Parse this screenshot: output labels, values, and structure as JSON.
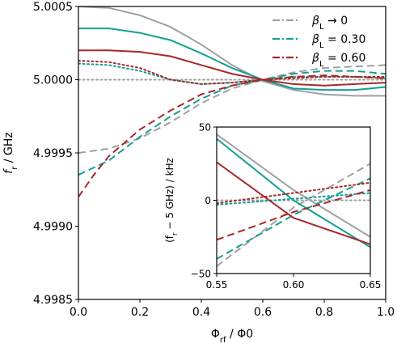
{
  "chart_data": [
    {
      "type": "line",
      "role": "main",
      "xlabel_parts": [
        "Φ",
        "rf",
        " / Φ",
        "0"
      ],
      "ylabel_parts": [
        "f",
        "r",
        " / GHz"
      ],
      "xlim": [
        0.0,
        1.0
      ],
      "ylim": [
        4.9985,
        5.0005
      ],
      "xticks": [
        0.0,
        0.2,
        0.4,
        0.6,
        0.8,
        1.0
      ],
      "xtick_labels": [
        "0.0",
        "0.2",
        "0.4",
        "0.6",
        "0.8",
        "1.0"
      ],
      "yticks": [
        4.9985,
        4.999,
        4.9995,
        5.0,
        5.0005
      ],
      "ytick_labels": [
        "4.9985",
        "4.9990",
        "4.9995",
        "5.0000",
        "5.0005"
      ],
      "legend_position": "top-right",
      "grid": false,
      "series": [
        {
          "name": "β_L → 0",
          "color": "#a0a0a0",
          "style": "solid",
          "x": [
            0.0,
            0.1,
            0.2,
            0.3,
            0.4,
            0.5,
            0.6,
            0.7,
            0.8,
            0.9,
            1.0
          ],
          "y": [
            5.0005,
            5.00049,
            5.00044,
            5.00036,
            5.00024,
            5.0001,
            4.99999,
            4.99993,
            4.9999,
            4.99989,
            4.99989
          ]
        },
        {
          "name": "β_L → 0",
          "color": "#a0a0a0",
          "style": "dashed",
          "x": [
            0.0,
            0.1,
            0.2,
            0.3,
            0.4,
            0.5,
            0.6,
            0.7,
            0.8,
            0.9,
            1.0
          ],
          "y": [
            4.9995,
            4.99953,
            4.9996,
            4.99971,
            4.99984,
            4.99994,
            5.0,
            5.00005,
            5.00008,
            5.00009,
            5.0001
          ]
        },
        {
          "name": "β_L → 0",
          "color": "#a0a0a0",
          "style": "dotted",
          "x": [
            0.0,
            0.25,
            0.5,
            0.75,
            1.0
          ],
          "y": [
            5.0,
            5.0,
            5.0,
            5.0,
            5.0
          ]
        },
        {
          "name": "β_L = 0.30",
          "color": "#12a092",
          "style": "solid",
          "x": [
            0.0,
            0.1,
            0.2,
            0.3,
            0.4,
            0.5,
            0.6,
            0.7,
            0.8,
            0.9,
            1.0
          ],
          "y": [
            5.00035,
            5.00035,
            5.00032,
            5.00027,
            5.00018,
            5.00008,
            5.0,
            4.99994,
            4.99993,
            4.99993,
            4.99995
          ]
        },
        {
          "name": "β_L = 0.30",
          "color": "#12a092",
          "style": "dashed",
          "x": [
            0.0,
            0.1,
            0.2,
            0.3,
            0.4,
            0.5,
            0.6,
            0.7,
            0.8,
            0.9,
            1.0
          ],
          "y": [
            4.99935,
            4.99945,
            4.99961,
            4.99975,
            4.99987,
            4.99996,
            5.0,
            5.00004,
            5.00006,
            5.00006,
            5.00004
          ]
        },
        {
          "name": "β_L = 0.30",
          "color": "#12a092",
          "style": "dotted",
          "x": [
            0.0,
            0.1,
            0.2,
            0.3,
            0.4,
            0.5,
            0.6,
            0.7,
            0.8,
            0.9,
            1.0
          ],
          "y": [
            5.00011,
            5.0001,
            5.00006,
            5.0,
            4.99997,
            4.99998,
            5.0,
            5.00002,
            5.00002,
            5.00002,
            5.00001
          ]
        },
        {
          "name": "β_L = 0.60",
          "color": "#a82828",
          "style": "solid",
          "x": [
            0.0,
            0.1,
            0.2,
            0.3,
            0.4,
            0.5,
            0.6,
            0.7,
            0.8,
            0.9,
            1.0
          ],
          "y": [
            5.0002,
            5.0002,
            5.00019,
            5.00016,
            5.0001,
            5.00004,
            5.0,
            4.99997,
            4.99996,
            4.99997,
            4.99998
          ]
        },
        {
          "name": "β_L = 0.60",
          "color": "#a82828",
          "style": "dashed",
          "x": [
            0.0,
            0.05,
            0.1,
            0.2,
            0.3,
            0.4,
            0.5,
            0.6,
            0.7,
            0.8,
            0.9,
            1.0
          ],
          "y": [
            4.9992,
            4.99935,
            4.99948,
            4.99966,
            4.99979,
            4.9999,
            4.99996,
            5.0,
            5.00002,
            5.00003,
            5.00002,
            5.00001
          ]
        },
        {
          "name": "β_L = 0.60",
          "color": "#a82828",
          "style": "dotted",
          "x": [
            0.0,
            0.1,
            0.2,
            0.3,
            0.4,
            0.5,
            0.6,
            0.7,
            0.8,
            0.9,
            1.0
          ],
          "y": [
            5.00013,
            5.00012,
            5.00008,
            5.0,
            4.99997,
            4.99998,
            5.0,
            5.00001,
            5.00002,
            5.00002,
            5.00002
          ]
        }
      ]
    },
    {
      "type": "line",
      "role": "inset",
      "ylabel_parts": [
        "(f",
        "r",
        " − 5 GHz) / kHz"
      ],
      "xlim": [
        0.55,
        0.65
      ],
      "ylim": [
        -50,
        50
      ],
      "xticks": [
        0.55,
        0.6,
        0.65
      ],
      "xtick_labels": [
        "0.55",
        "0.60",
        "0.65"
      ],
      "yticks": [
        -50,
        0,
        50
      ],
      "ytick_labels": [
        "−50",
        "0",
        "50"
      ],
      "grid": false,
      "series": [
        {
          "name": "β_L → 0",
          "color": "#a0a0a0",
          "style": "solid",
          "x": [
            0.55,
            0.6,
            0.65
          ],
          "y": [
            45,
            7,
            -25
          ]
        },
        {
          "name": "β_L → 0",
          "color": "#a0a0a0",
          "style": "dashed",
          "x": [
            0.55,
            0.6,
            0.65
          ],
          "y": [
            -45,
            -5,
            25
          ]
        },
        {
          "name": "β_L → 0",
          "color": "#a0a0a0",
          "style": "dotted",
          "x": [
            0.55,
            0.65
          ],
          "y": [
            0,
            0
          ]
        },
        {
          "name": "β_L = 0.30",
          "color": "#12a092",
          "style": "solid",
          "x": [
            0.55,
            0.6,
            0.65
          ],
          "y": [
            42,
            0,
            -32
          ]
        },
        {
          "name": "β_L = 0.30",
          "color": "#12a092",
          "style": "dashed",
          "x": [
            0.55,
            0.6,
            0.65
          ],
          "y": [
            -40,
            -10,
            15
          ]
        },
        {
          "name": "β_L = 0.30",
          "color": "#12a092",
          "style": "dotted",
          "x": [
            0.55,
            0.6,
            0.65
          ],
          "y": [
            -3,
            1,
            5
          ]
        },
        {
          "name": "β_L = 0.60",
          "color": "#a82828",
          "style": "solid",
          "x": [
            0.55,
            0.6,
            0.65
          ],
          "y": [
            26,
            -12,
            -30
          ]
        },
        {
          "name": "β_L = 0.60",
          "color": "#a82828",
          "style": "dashed",
          "x": [
            0.55,
            0.6,
            0.65
          ],
          "y": [
            -27,
            -8,
            7
          ]
        },
        {
          "name": "β_L = 0.60",
          "color": "#a82828",
          "style": "dotted",
          "x": [
            0.55,
            0.6,
            0.65
          ],
          "y": [
            -2,
            5,
            12
          ]
        }
      ]
    }
  ],
  "legend": [
    {
      "label_parts": [
        "β",
        "L",
        " → 0"
      ],
      "color": "#a0a0a0"
    },
    {
      "label_parts": [
        "β",
        "L",
        " = 0.30"
      ],
      "color": "#12a092"
    },
    {
      "label_parts": [
        "β",
        "L",
        " = 0.60"
      ],
      "color": "#a82828"
    }
  ]
}
